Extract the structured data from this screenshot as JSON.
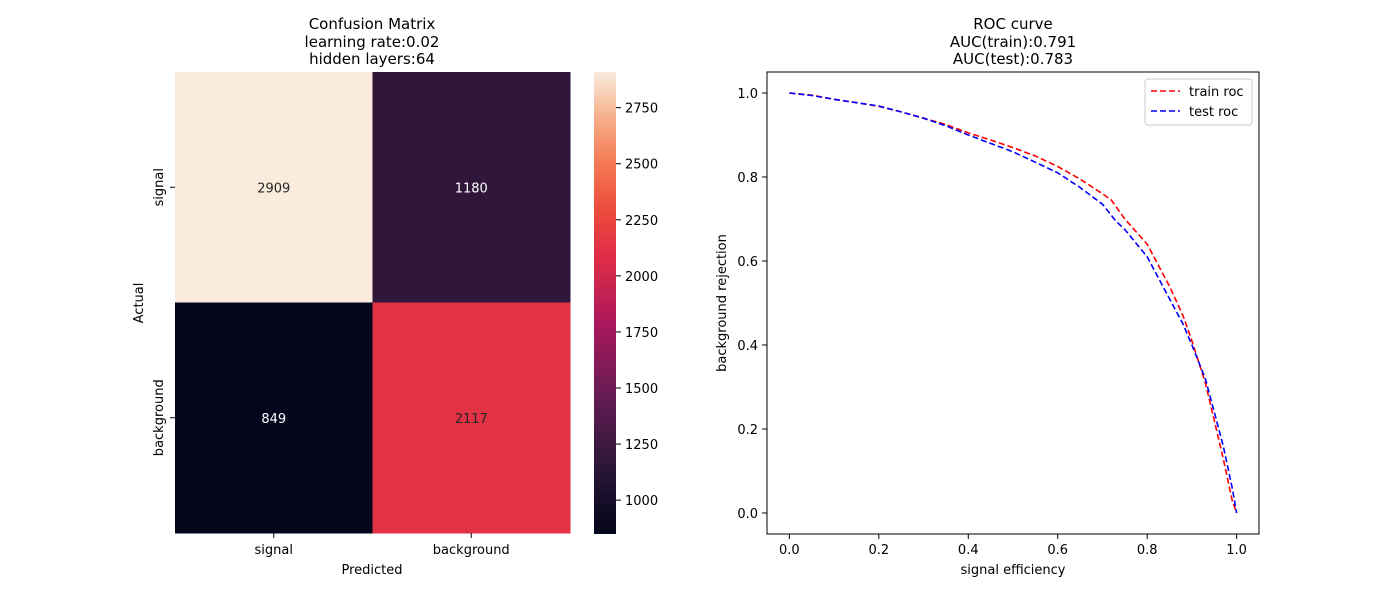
{
  "chart_data": [
    {
      "type": "heatmap",
      "title_lines": [
        "Confusion Matrix",
        "learning rate:0.02",
        "hidden layers:64"
      ],
      "xlabel": "Predicted",
      "ylabel": "Actual",
      "x_categories": [
        "signal",
        "background"
      ],
      "y_categories": [
        "signal",
        "background"
      ],
      "values": [
        [
          2909,
          1180
        ],
        [
          849,
          2117
        ]
      ],
      "colorbar": {
        "vmin": 849,
        "vmax": 2909,
        "ticks": [
          1000,
          1250,
          1500,
          1750,
          2000,
          2250,
          2500,
          2750
        ],
        "colormap": "rocket"
      }
    },
    {
      "type": "line",
      "title_lines": [
        "ROC curve",
        "AUC(train):0.791",
        "AUC(test):0.783"
      ],
      "xlabel": "signal efficiency",
      "ylabel": "background rejection",
      "xlim": [
        -0.05,
        1.05
      ],
      "ylim": [
        -0.05,
        1.05
      ],
      "xticks": [
        "0.0",
        "0.2",
        "0.4",
        "0.6",
        "0.8",
        "1.0"
      ],
      "yticks": [
        "0.0",
        "0.2",
        "0.4",
        "0.6",
        "0.8",
        "1.0"
      ],
      "legend_position": "top-right",
      "series": [
        {
          "name": "train roc",
          "color": "#ff0000",
          "style": "dashed",
          "x": [
            0,
            0.05,
            0.1,
            0.15,
            0.2,
            0.25,
            0.3,
            0.35,
            0.4,
            0.45,
            0.5,
            0.55,
            0.6,
            0.65,
            0.7,
            0.72,
            0.75,
            0.8,
            0.82,
            0.85,
            0.88,
            0.9,
            0.93,
            0.95,
            0.97,
            0.98,
            0.99,
            1.0
          ],
          "y": [
            1.0,
            0.995,
            0.985,
            0.977,
            0.968,
            0.955,
            0.94,
            0.925,
            0.905,
            0.888,
            0.87,
            0.85,
            0.825,
            0.795,
            0.76,
            0.745,
            0.7,
            0.64,
            0.6,
            0.54,
            0.47,
            0.41,
            0.31,
            0.22,
            0.13,
            0.08,
            0.03,
            0.0
          ]
        },
        {
          "name": "test roc",
          "color": "#0000ff",
          "style": "dashed",
          "x": [
            0,
            0.05,
            0.1,
            0.15,
            0.2,
            0.25,
            0.3,
            0.35,
            0.4,
            0.45,
            0.5,
            0.55,
            0.6,
            0.65,
            0.7,
            0.73,
            0.75,
            0.8,
            0.82,
            0.85,
            0.88,
            0.9,
            0.93,
            0.95,
            0.97,
            0.98,
            0.99,
            1.0
          ],
          "y": [
            1.0,
            0.994,
            0.985,
            0.977,
            0.969,
            0.955,
            0.94,
            0.922,
            0.9,
            0.88,
            0.86,
            0.835,
            0.81,
            0.775,
            0.735,
            0.695,
            0.675,
            0.61,
            0.57,
            0.51,
            0.45,
            0.4,
            0.32,
            0.24,
            0.16,
            0.11,
            0.06,
            0.0
          ]
        }
      ]
    }
  ]
}
